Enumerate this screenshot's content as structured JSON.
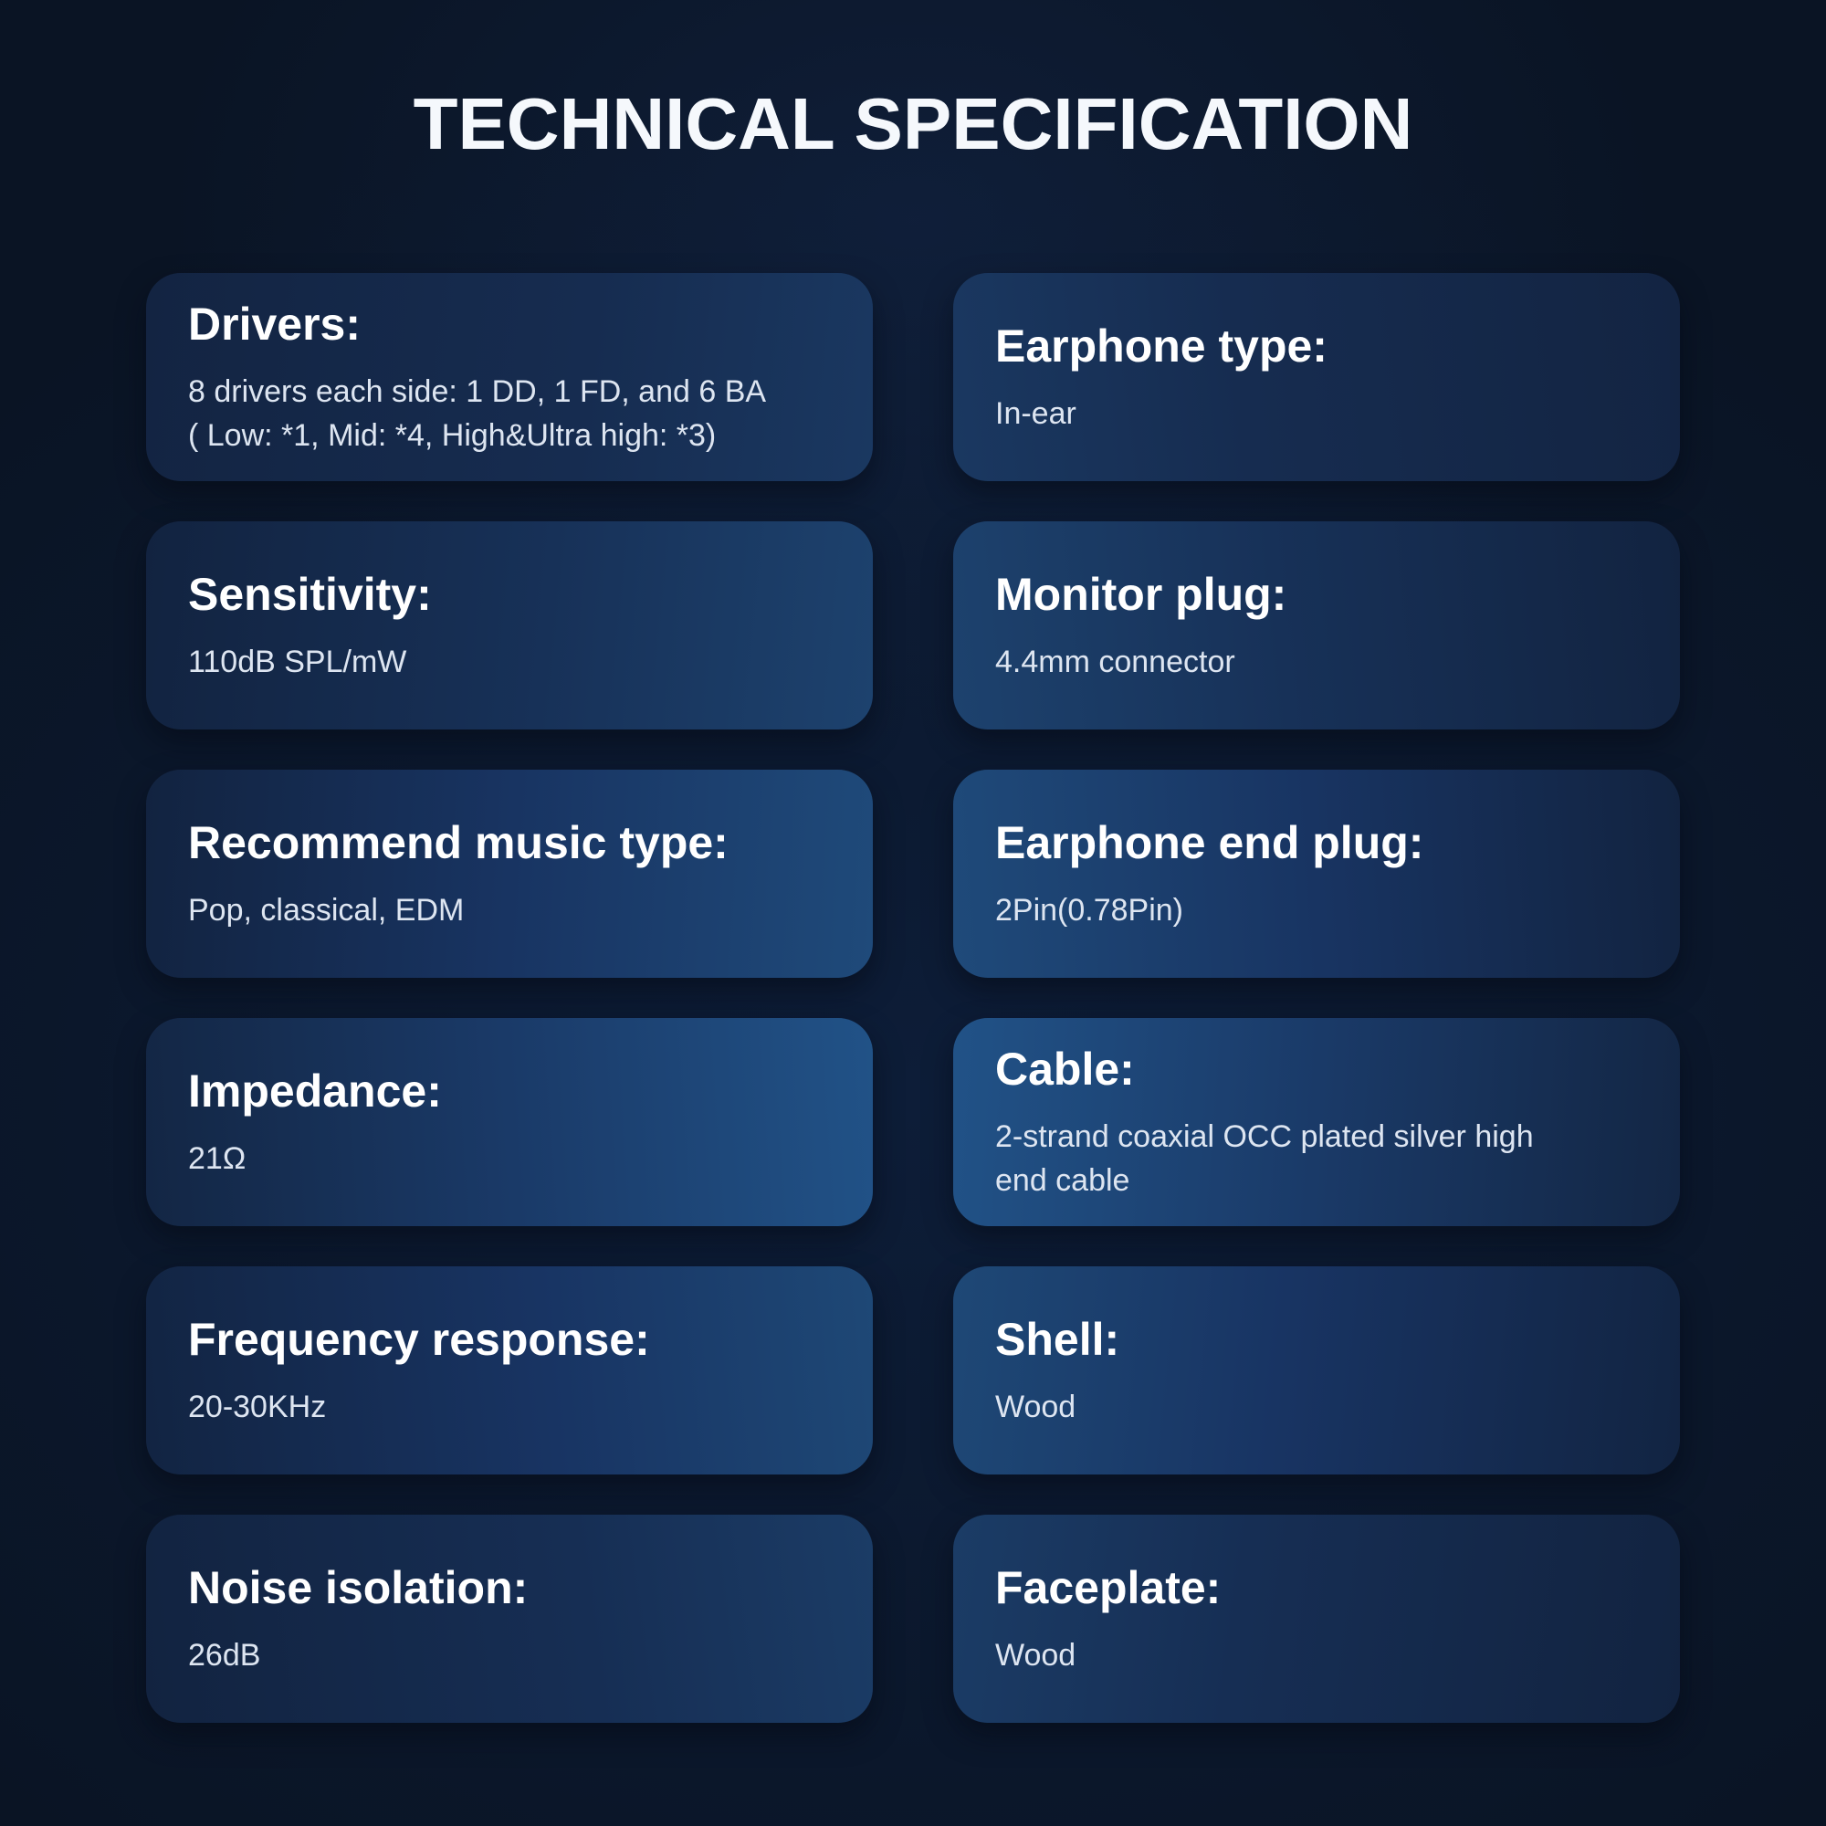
{
  "title": "TECHNICAL SPECIFICATION",
  "colors": {
    "background": "#0a1424",
    "card_gradient_dark": "#132442",
    "card_gradient_light": "#215287",
    "heading_text": "#ffffff",
    "body_text": "#dde5f1"
  },
  "cards": {
    "left": [
      {
        "heading": "Drivers:",
        "body": "8 drivers each side: 1 DD, 1 FD,  and 6 BA\n( Low: *1, Mid: *4, High&Ultra high: *3)"
      },
      {
        "heading": "Sensitivity:",
        "body": "110dB SPL/mW"
      },
      {
        "heading": "Recommend music type:",
        "body": "Pop, classical, EDM"
      },
      {
        "heading": "Impedance:",
        "body": "21Ω"
      },
      {
        "heading": "Frequency response:",
        "body": "20-30KHz"
      },
      {
        "heading": "Noise isolation:",
        "body": "26dB"
      }
    ],
    "right": [
      {
        "heading": "Earphone type:",
        "body": "In-ear"
      },
      {
        "heading": "Monitor plug:",
        "body": "4.4mm connector"
      },
      {
        "heading": "Earphone end plug:",
        "body": "2Pin(0.78Pin)"
      },
      {
        "heading": "Cable:",
        "body": "2-strand coaxial OCC plated silver high\nend cable"
      },
      {
        "heading": "Shell:",
        "body": "Wood"
      },
      {
        "heading": "Faceplate:",
        "body": "Wood"
      }
    ]
  }
}
